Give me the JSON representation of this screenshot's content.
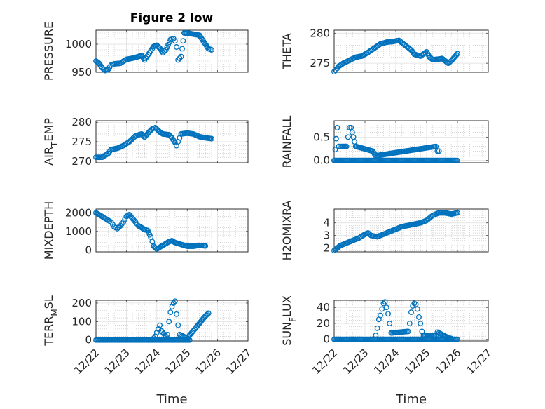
{
  "figure": {
    "title": "Figure 2 low"
  },
  "chart_data": [
    {
      "type": "scatter",
      "ylabel": "PRESSURE",
      "xlabel": "",
      "xlim": [
        0,
        5
      ],
      "ylim": [
        950,
        1025
      ],
      "yticks": [
        950,
        1000
      ],
      "xticklabels": [],
      "grid": true,
      "marker_color": "#0072BD",
      "trace": [
        [
          0.0,
          970
        ],
        [
          0.1,
          966
        ],
        [
          0.2,
          958
        ],
        [
          0.3,
          953
        ],
        [
          0.4,
          955
        ],
        [
          0.5,
          963
        ],
        [
          0.6,
          965
        ],
        [
          0.8,
          966
        ],
        [
          1.0,
          973
        ],
        [
          1.2,
          975
        ],
        [
          1.4,
          978
        ],
        [
          1.5,
          980
        ],
        [
          1.6,
          972
        ],
        [
          1.8,
          988
        ],
        [
          1.9,
          996
        ],
        [
          2.0,
          998
        ],
        [
          2.1,
          993
        ],
        [
          2.2,
          985
        ],
        [
          2.3,
          990
        ],
        [
          2.45,
          1008
        ],
        [
          2.55,
          1010
        ],
        [
          2.6,
          1006
        ],
        [
          2.65,
          995
        ],
        [
          2.7,
          972
        ],
        [
          2.8,
          978
        ],
        [
          2.9,
          1020
        ],
        [
          3.0,
          1020
        ],
        [
          3.2,
          1018
        ],
        [
          3.4,
          1016
        ],
        [
          3.5,
          1008
        ],
        [
          3.6,
          1000
        ],
        [
          3.7,
          992
        ],
        [
          3.8,
          990
        ]
      ]
    },
    {
      "type": "scatter",
      "ylabel": "THETA",
      "xlabel": "",
      "xlim": [
        0,
        5
      ],
      "ylim": [
        273.5,
        280.5
      ],
      "yticks": [
        275,
        280
      ],
      "xticklabels": [],
      "grid": true,
      "marker_color": "#0072BD",
      "trace": [
        [
          0.0,
          273.6
        ],
        [
          0.05,
          273.8
        ],
        [
          0.15,
          274.5
        ],
        [
          0.3,
          275.0
        ],
        [
          0.5,
          275.5
        ],
        [
          0.7,
          276.0
        ],
        [
          0.9,
          276.2
        ],
        [
          1.1,
          276.8
        ],
        [
          1.3,
          277.5
        ],
        [
          1.5,
          278.2
        ],
        [
          1.7,
          278.5
        ],
        [
          1.9,
          278.6
        ],
        [
          2.1,
          278.8
        ],
        [
          2.3,
          278.0
        ],
        [
          2.5,
          277.2
        ],
        [
          2.6,
          276.5
        ],
        [
          2.8,
          276.2
        ],
        [
          3.0,
          276.9
        ],
        [
          3.1,
          276.0
        ],
        [
          3.2,
          275.6
        ],
        [
          3.4,
          275.7
        ],
        [
          3.5,
          275.8
        ],
        [
          3.6,
          275.4
        ],
        [
          3.7,
          275.0
        ],
        [
          3.8,
          275.4
        ],
        [
          3.9,
          276.0
        ],
        [
          4.0,
          276.6
        ]
      ]
    },
    {
      "type": "scatter",
      "ylabel": "AIR_TEMP",
      "xlabel": "",
      "xlim": [
        0,
        5
      ],
      "ylim": [
        269.6,
        280.4
      ],
      "yticks": [
        270,
        275,
        280
      ],
      "xticklabels": [],
      "grid": true,
      "marker_color": "#0072BD",
      "trace": [
        [
          0.0,
          271.0
        ],
        [
          0.2,
          271.0
        ],
        [
          0.4,
          272.0
        ],
        [
          0.5,
          273.0
        ],
        [
          0.7,
          273.3
        ],
        [
          0.9,
          274.0
        ],
        [
          1.1,
          275.0
        ],
        [
          1.3,
          276.5
        ],
        [
          1.5,
          277.0
        ],
        [
          1.6,
          276.2
        ],
        [
          1.75,
          277.5
        ],
        [
          1.85,
          278.3
        ],
        [
          1.95,
          278.6
        ],
        [
          2.1,
          277.5
        ],
        [
          2.2,
          277.0
        ],
        [
          2.4,
          276.8
        ],
        [
          2.5,
          276.0
        ],
        [
          2.6,
          274.8
        ],
        [
          2.65,
          274.0
        ],
        [
          2.7,
          275.0
        ],
        [
          2.8,
          277.0
        ],
        [
          3.0,
          277.2
        ],
        [
          3.2,
          277.0
        ],
        [
          3.4,
          276.3
        ],
        [
          3.6,
          276.0
        ],
        [
          3.8,
          275.8
        ]
      ]
    },
    {
      "type": "scatter",
      "ylabel": "RAINFALL",
      "xlabel": "",
      "xlim": [
        0,
        5
      ],
      "ylim": [
        -0.05,
        0.85
      ],
      "yticks": [
        0,
        0.5
      ],
      "xticklabels": [],
      "grid": true,
      "marker_color": "#0072BD",
      "trace": [
        [
          0.0,
          0
        ],
        [
          0.1,
          0.7
        ],
        [
          0.15,
          0.3
        ],
        [
          0.2,
          0.3
        ],
        [
          0.3,
          0.3
        ],
        [
          0.4,
          0.3
        ],
        [
          0.5,
          0.7
        ],
        [
          0.55,
          0.7
        ],
        [
          0.7,
          0.3
        ],
        [
          1.25,
          0.2
        ],
        [
          1.35,
          0.1
        ],
        [
          3.3,
          0.3
        ],
        [
          3.35,
          0.2
        ],
        [
          3.4,
          0.2
        ]
      ],
      "baseline": {
        "value": 0,
        "from": 0,
        "to": 4.0
      }
    },
    {
      "type": "scatter",
      "ylabel": "MIXDEPTH",
      "xlabel": "",
      "xlim": [
        0,
        5
      ],
      "ylim": [
        -100,
        2200
      ],
      "yticks": [
        0,
        1000,
        2000
      ],
      "xticklabels": [],
      "grid": true,
      "marker_color": "#0072BD",
      "trace": [
        [
          0.0,
          2000
        ],
        [
          0.1,
          1900
        ],
        [
          0.2,
          1800
        ],
        [
          0.3,
          1700
        ],
        [
          0.4,
          1600
        ],
        [
          0.5,
          1500
        ],
        [
          0.6,
          1250
        ],
        [
          0.7,
          1150
        ],
        [
          0.8,
          1300
        ],
        [
          0.9,
          1500
        ],
        [
          1.0,
          1800
        ],
        [
          1.1,
          1900
        ],
        [
          1.2,
          1700
        ],
        [
          1.3,
          1500
        ],
        [
          1.4,
          1300
        ],
        [
          1.5,
          1200
        ],
        [
          1.6,
          1100
        ],
        [
          1.7,
          1050
        ],
        [
          1.8,
          700
        ],
        [
          1.9,
          200
        ],
        [
          2.0,
          50
        ],
        [
          2.1,
          150
        ],
        [
          2.2,
          250
        ],
        [
          2.3,
          350
        ],
        [
          2.4,
          450
        ],
        [
          2.5,
          500
        ],
        [
          2.6,
          400
        ],
        [
          2.7,
          350
        ],
        [
          2.8,
          300
        ],
        [
          2.9,
          250
        ],
        [
          3.0,
          200
        ],
        [
          3.2,
          200
        ],
        [
          3.4,
          250
        ],
        [
          3.6,
          220
        ]
      ]
    },
    {
      "type": "scatter",
      "ylabel": "H2OMIXRA",
      "xlabel": "",
      "xlim": [
        0,
        5
      ],
      "ylim": [
        1.7,
        5.1
      ],
      "yticks": [
        2,
        3,
        4
      ],
      "xticklabels": [],
      "grid": true,
      "marker_color": "#0072BD",
      "trace": [
        [
          0.0,
          1.8
        ],
        [
          0.1,
          2.0
        ],
        [
          0.2,
          2.2
        ],
        [
          0.4,
          2.4
        ],
        [
          0.6,
          2.6
        ],
        [
          0.8,
          2.8
        ],
        [
          1.0,
          3.1
        ],
        [
          1.1,
          3.2
        ],
        [
          1.2,
          3.0
        ],
        [
          1.4,
          2.9
        ],
        [
          1.6,
          3.1
        ],
        [
          1.8,
          3.3
        ],
        [
          2.0,
          3.5
        ],
        [
          2.2,
          3.7
        ],
        [
          2.4,
          3.8
        ],
        [
          2.6,
          3.9
        ],
        [
          2.8,
          4.0
        ],
        [
          3.0,
          4.2
        ],
        [
          3.2,
          4.6
        ],
        [
          3.4,
          4.8
        ],
        [
          3.6,
          4.8
        ],
        [
          3.8,
          4.7
        ],
        [
          4.0,
          4.8
        ]
      ]
    },
    {
      "type": "scatter",
      "ylabel": "TERR_MSL",
      "xlabel": "Time",
      "xlim": [
        0,
        5
      ],
      "ylim": [
        -5,
        215
      ],
      "yticks": [
        0,
        100,
        200
      ],
      "xticklabels": [
        "12/22",
        "12/23",
        "12/24",
        "12/25",
        "12/26",
        "12/27"
      ],
      "grid": true,
      "marker_color": "#0072BD",
      "trace": [
        [
          1.9,
          10
        ],
        [
          1.95,
          20
        ],
        [
          2.0,
          40
        ],
        [
          2.05,
          60
        ],
        [
          2.1,
          80
        ],
        [
          2.15,
          50
        ],
        [
          2.3,
          20
        ],
        [
          2.35,
          30
        ],
        [
          2.4,
          100
        ],
        [
          2.45,
          150
        ],
        [
          2.5,
          180
        ],
        [
          2.55,
          200
        ],
        [
          2.6,
          210
        ],
        [
          2.65,
          140
        ],
        [
          2.7,
          80
        ],
        [
          2.75,
          30
        ],
        [
          3.0,
          10
        ],
        [
          3.1,
          30
        ],
        [
          3.2,
          50
        ],
        [
          3.3,
          70
        ],
        [
          3.4,
          90
        ],
        [
          3.5,
          110
        ],
        [
          3.6,
          130
        ],
        [
          3.7,
          145
        ]
      ],
      "baseline": {
        "value": 0,
        "from": 0,
        "to": 3.1
      }
    },
    {
      "type": "scatter",
      "ylabel": "SUN_FLUX",
      "xlabel": "Time",
      "xlim": [
        0,
        5
      ],
      "ylim": [
        -2,
        49
      ],
      "yticks": [
        0,
        20,
        40
      ],
      "xticklabels": [
        "12/22",
        "12/23",
        "12/24",
        "12/25",
        "12/26",
        "12/27"
      ],
      "grid": true,
      "marker_color": "#0072BD",
      "trace": [
        [
          1.35,
          5
        ],
        [
          1.4,
          14
        ],
        [
          1.45,
          25
        ],
        [
          1.5,
          30
        ],
        [
          1.55,
          38
        ],
        [
          1.6,
          45
        ],
        [
          1.65,
          47
        ],
        [
          1.7,
          40
        ],
        [
          1.75,
          32
        ],
        [
          1.8,
          20
        ],
        [
          1.85,
          8
        ],
        [
          2.4,
          10
        ],
        [
          2.45,
          20
        ],
        [
          2.5,
          34
        ],
        [
          2.55,
          42
        ],
        [
          2.6,
          45
        ],
        [
          2.65,
          44
        ],
        [
          2.7,
          38
        ],
        [
          2.75,
          28
        ],
        [
          2.8,
          20
        ],
        [
          2.85,
          10
        ],
        [
          2.9,
          5
        ],
        [
          3.3,
          5
        ],
        [
          3.35,
          9
        ],
        [
          3.4,
          8
        ],
        [
          3.5,
          6
        ],
        [
          3.6,
          4
        ],
        [
          3.7,
          2
        ],
        [
          3.8,
          1
        ]
      ],
      "baseline": {
        "value": 0,
        "from": 0,
        "to": 4.0
      }
    }
  ]
}
